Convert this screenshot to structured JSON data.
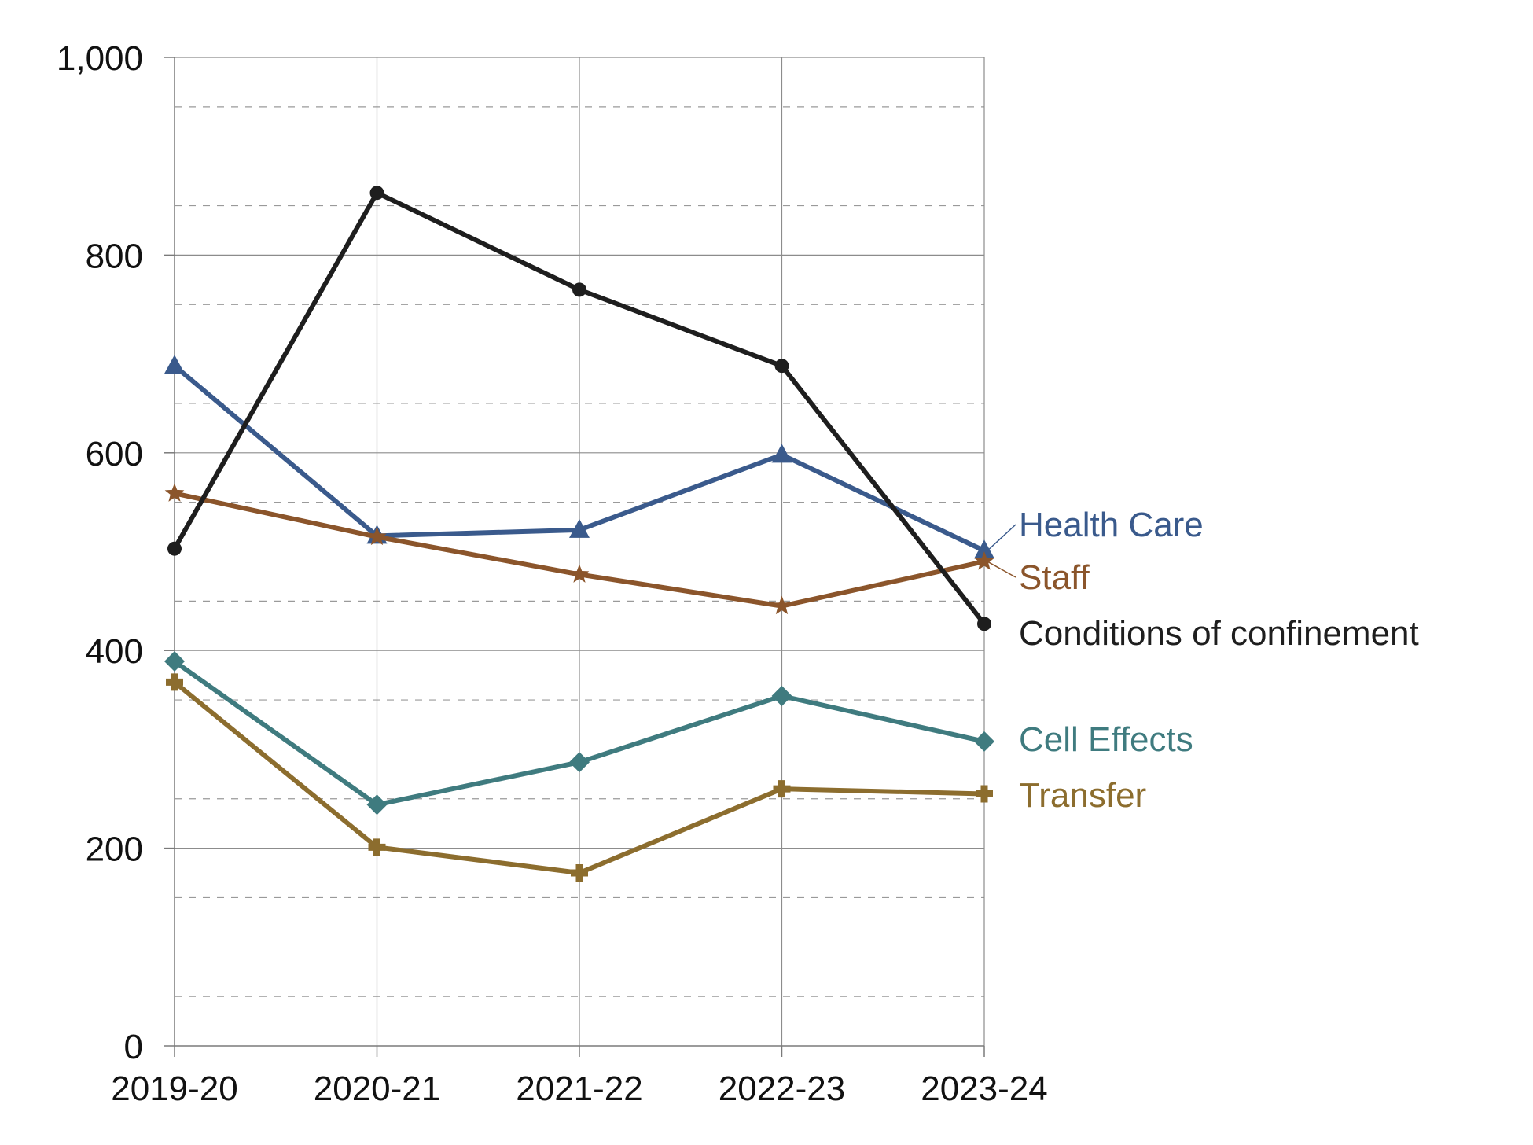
{
  "chart_data": {
    "type": "line",
    "title": "",
    "xlabel": "",
    "ylabel": "",
    "categories": [
      "2019-20",
      "2020-21",
      "2021-22",
      "2022-23",
      "2023-24"
    ],
    "ylim": [
      0,
      1000
    ],
    "yticks": [
      0,
      200,
      400,
      600,
      800,
      1000
    ],
    "ytick_labels": [
      "0",
      "200",
      "400",
      "600",
      "800",
      "1,000"
    ],
    "grid": "major solid, minor dashed",
    "legend": "direct labels at right end of lines",
    "series": [
      {
        "name": "Health Care",
        "color": "#3a5a8c",
        "marker": "triangle",
        "values": [
          688,
          516,
          522,
          598,
          501
        ]
      },
      {
        "name": "Staff",
        "color": "#8b552b",
        "marker": "star",
        "values": [
          559,
          515,
          477,
          445,
          490
        ]
      },
      {
        "name": "Conditions of confinement",
        "color": "#1e1e1e",
        "marker": "circle",
        "values": [
          503,
          863,
          765,
          688,
          427
        ]
      },
      {
        "name": "Cell Effects",
        "color": "#3f7b7f",
        "marker": "diamond",
        "values": [
          389,
          244,
          287,
          354,
          308
        ]
      },
      {
        "name": "Transfer",
        "color": "#8c6d2e",
        "marker": "plus",
        "values": [
          368,
          201,
          175,
          260,
          255
        ]
      }
    ]
  }
}
